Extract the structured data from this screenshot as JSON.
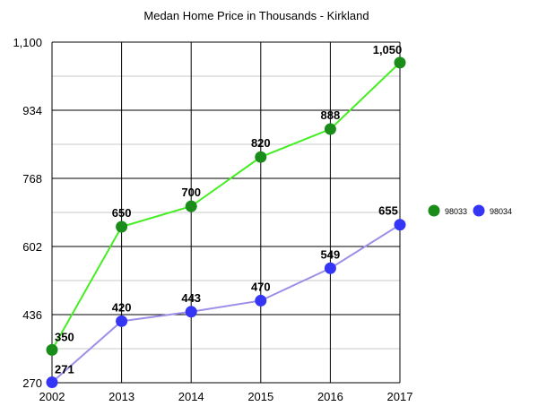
{
  "chart_data": {
    "type": "line",
    "title": "Medan Home Price in Thousands - Kirkland",
    "xlabel": "",
    "ylabel": "",
    "categories": [
      "2002",
      "2013",
      "2014",
      "2015",
      "2016",
      "2017"
    ],
    "y_ticks": [
      "270",
      "436",
      "602",
      "768",
      "934",
      "1,100"
    ],
    "ylim": [
      270,
      1100
    ],
    "grid": true,
    "legend_position": "right",
    "series": [
      {
        "name": "98033",
        "values": [
          350,
          650,
          700,
          820,
          888,
          1050
        ],
        "labels": [
          "350",
          "650",
          "700",
          "820",
          "888",
          "1,050"
        ],
        "line_color": "#44ee22",
        "marker_color": "#1a8c1a"
      },
      {
        "name": "98034",
        "values": [
          271,
          420,
          443,
          470,
          549,
          655
        ],
        "labels": [
          "271",
          "420",
          "443",
          "470",
          "549",
          "655"
        ],
        "line_color": "#9d8fe8",
        "marker_color": "#3535f5"
      }
    ]
  }
}
